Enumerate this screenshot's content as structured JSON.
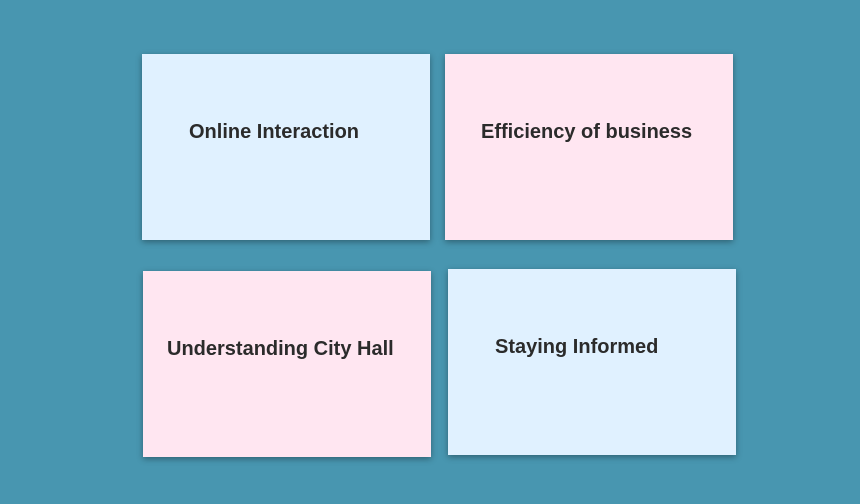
{
  "colors": {
    "background": "#4896b0",
    "card_blue": "#e0f1ff",
    "card_pink": "#ffe6f1",
    "text": "#2b2b2b"
  },
  "cards": [
    {
      "label": "Online Interaction",
      "color": "#e0f1ff"
    },
    {
      "label": "Efficiency of business",
      "color": "#ffe6f1"
    },
    {
      "label": "Understanding City Hall",
      "color": "#ffe6f1"
    },
    {
      "label": "Staying Informed",
      "color": "#e0f1ff"
    }
  ]
}
